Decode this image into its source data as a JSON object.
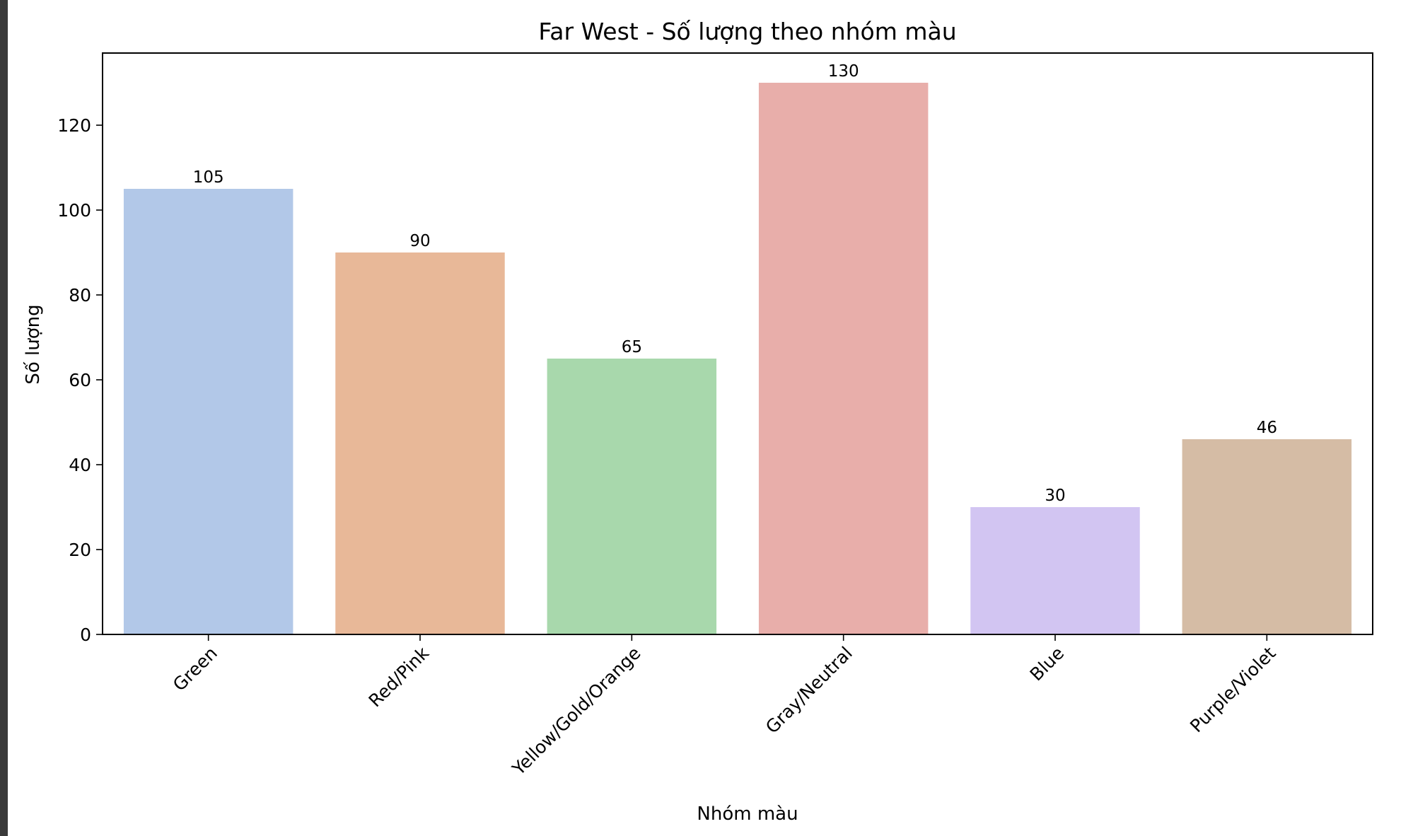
{
  "chart_data": {
    "type": "bar",
    "title": "Far West - Số lượng theo nhóm màu",
    "xlabel": "Nhóm màu",
    "ylabel": "Số lượng",
    "categories": [
      "Green",
      "Red/Pink",
      "Yellow/Gold/Orange",
      "Gray/Neutral",
      "Blue",
      "Purple/Violet"
    ],
    "values": [
      105,
      90,
      65,
      130,
      30,
      46
    ],
    "data_labels": [
      "105",
      "90",
      "65",
      "130",
      "30",
      "46"
    ],
    "colors": [
      "#b2c8e8",
      "#e8b898",
      "#a8d8ac",
      "#e8aeaa",
      "#d2c5f2",
      "#d5bca5"
    ],
    "ylim": [
      0,
      137
    ],
    "yticks": [
      0,
      20,
      40,
      60,
      80,
      100,
      120
    ],
    "ytick_labels": [
      "0",
      "20",
      "40",
      "60",
      "80",
      "100",
      "120"
    ],
    "grid": false,
    "legend": "none"
  }
}
